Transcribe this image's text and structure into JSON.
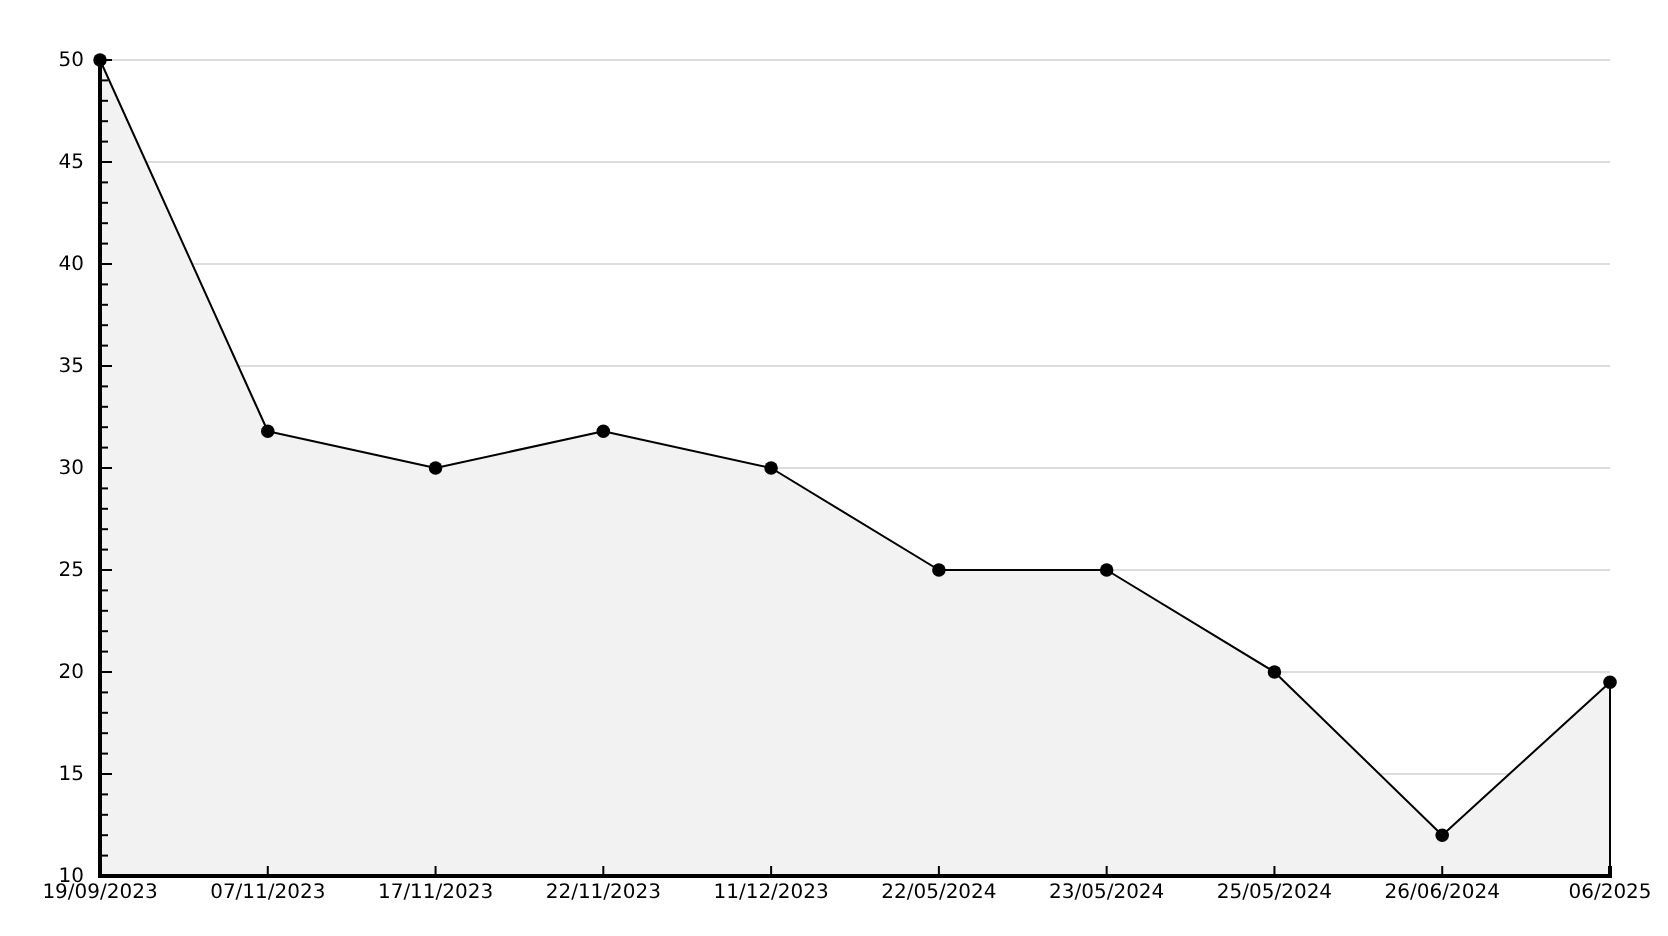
{
  "chart_data": {
    "type": "area",
    "categories": [
      "19/09/2023",
      "07/11/2023",
      "17/11/2023",
      "22/11/2023",
      "11/12/2023",
      "22/05/2024",
      "23/05/2024",
      "25/05/2024",
      "26/06/2024",
      "06/2025"
    ],
    "series": [
      {
        "color": "#000000",
        "values": [
          50,
          31.8,
          30,
          31.8,
          30,
          25,
          25,
          20,
          12,
          19.5
        ]
      }
    ],
    "ylim": [
      10,
      50
    ],
    "yticks": [
      10,
      {
        "value": 11,
        "label": null
      },
      {
        "value": 12,
        "label": null
      },
      {
        "value": 13,
        "label": null
      },
      {
        "value": 14,
        "label": null
      },
      15,
      {
        "value": 16,
        "label": null
      },
      {
        "value": 17,
        "label": null
      },
      {
        "value": 18,
        "label": null
      },
      {
        "value": 19,
        "label": null
      },
      20,
      {
        "value": 21,
        "label": null
      },
      {
        "value": 22,
        "label": null
      },
      {
        "value": 23,
        "label": null
      },
      {
        "value": 24,
        "label": null
      },
      25,
      {
        "value": 26,
        "label": null
      },
      {
        "value": 27,
        "label": null
      },
      {
        "value": 28,
        "label": null
      },
      {
        "value": 29,
        "label": null
      },
      30,
      {
        "value": 31,
        "label": null
      },
      {
        "value": 32,
        "label": null
      },
      {
        "value": 33,
        "label": null
      },
      {
        "value": 34,
        "label": null
      },
      35,
      {
        "value": 36,
        "label": null
      },
      {
        "value": 37,
        "label": null
      },
      {
        "value": 38,
        "label": null
      },
      {
        "value": 39,
        "label": null
      },
      40,
      {
        "value": 41,
        "label": null
      },
      {
        "value": 42,
        "label": null
      },
      {
        "value": 43,
        "label": null
      },
      {
        "value": 44,
        "label": null
      },
      45,
      {
        "value": 46,
        "label": null
      },
      {
        "value": 47,
        "label": null
      },
      {
        "value": 48,
        "label": null
      },
      {
        "value": 49,
        "label": null
      },
      50
    ],
    "grid": "y",
    "marker": "circle",
    "line_style": "solid"
  }
}
